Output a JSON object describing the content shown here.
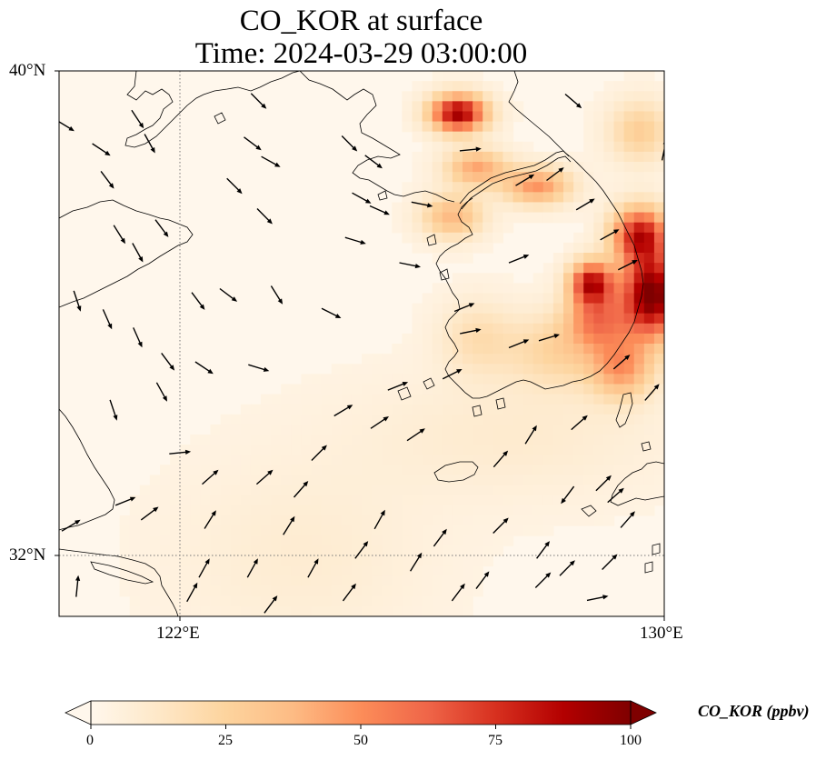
{
  "title_line1": "CO_KOR at surface",
  "title_line2": "Time: 2024-03-29 03:00:00",
  "lat_ticks": [
    "40°N",
    "32°N"
  ],
  "lon_ticks": [
    "122°E",
    "130°E"
  ],
  "colorbar": {
    "label": "CO_KOR (ppbv)",
    "ticks": [
      "0",
      "25",
      "50",
      "75",
      "100"
    ],
    "colormap": [
      "#fff7ec",
      "#fee8c8",
      "#fdd49e",
      "#fdbb84",
      "#fc8d59",
      "#ef6548",
      "#d7301f",
      "#b30000",
      "#7f0000"
    ],
    "extend": "both"
  },
  "map_extent": {
    "lon": [
      120,
      130
    ],
    "lat": [
      31,
      40
    ]
  },
  "gridlines": {
    "lon": [
      122
    ],
    "lat": [
      32
    ],
    "style": "dotted"
  },
  "chart_data": {
    "type": "heatmap",
    "variable": "CO_KOR",
    "units": "ppbv",
    "vmin": 0,
    "vmax": 100,
    "background_value": 3,
    "plumes": [
      {
        "lon": 126.6,
        "lat": 39.3,
        "rlon": 0.45,
        "rlat": 0.3,
        "value": 90
      },
      {
        "lon": 127.9,
        "lat": 38.1,
        "rlon": 0.55,
        "rlat": 0.3,
        "value": 45
      },
      {
        "lon": 126.9,
        "lat": 38.4,
        "rlon": 0.5,
        "rlat": 0.3,
        "value": 40
      },
      {
        "lon": 126.5,
        "lat": 37.6,
        "rlon": 0.5,
        "rlat": 0.35,
        "value": 35
      },
      {
        "lon": 128.8,
        "lat": 36.5,
        "rlon": 0.35,
        "rlat": 0.35,
        "value": 80
      },
      {
        "lon": 129.8,
        "lat": 36.3,
        "rlon": 0.5,
        "rlat": 0.7,
        "value": 100
      },
      {
        "lon": 129.6,
        "lat": 37.3,
        "rlon": 0.45,
        "rlat": 0.45,
        "value": 75
      },
      {
        "lon": 128.9,
        "lat": 35.9,
        "rlon": 0.5,
        "rlat": 0.45,
        "value": 45
      },
      {
        "lon": 128.3,
        "lat": 35.4,
        "rlon": 0.9,
        "rlat": 0.6,
        "value": 22
      },
      {
        "lon": 129.3,
        "lat": 35.1,
        "rlon": 0.5,
        "rlat": 0.5,
        "value": 40
      },
      {
        "lon": 126.9,
        "lat": 35.6,
        "rlon": 0.6,
        "rlat": 0.6,
        "value": 15
      },
      {
        "lon": 129.6,
        "lat": 39.0,
        "rlon": 0.5,
        "rlat": 0.5,
        "value": 25
      },
      {
        "lon": 127.5,
        "lat": 34.0,
        "rlon": 2.5,
        "rlat": 1.0,
        "value": 7
      },
      {
        "lon": 124.0,
        "lat": 32.0,
        "rlon": 2.0,
        "rlat": 1.5,
        "value": 6
      }
    ],
    "wind_arrows": [
      {
        "lon": 120.1,
        "lat": 39.1,
        "u": 1.0,
        "v": -0.6
      },
      {
        "lon": 120.7,
        "lat": 38.7,
        "u": 0.9,
        "v": -0.6
      },
      {
        "lon": 121.3,
        "lat": 39.2,
        "u": 0.6,
        "v": -0.9
      },
      {
        "lon": 121.5,
        "lat": 38.8,
        "u": 0.5,
        "v": -0.9
      },
      {
        "lon": 120.8,
        "lat": 38.2,
        "u": 0.6,
        "v": -0.8
      },
      {
        "lon": 121.7,
        "lat": 37.4,
        "u": 0.6,
        "v": -0.8
      },
      {
        "lon": 121.0,
        "lat": 37.3,
        "u": 0.5,
        "v": -0.8
      },
      {
        "lon": 121.3,
        "lat": 37.0,
        "u": 0.5,
        "v": -0.9
      },
      {
        "lon": 123.3,
        "lat": 39.5,
        "u": 0.7,
        "v": -0.7
      },
      {
        "lon": 123.2,
        "lat": 38.8,
        "u": 0.8,
        "v": -0.6
      },
      {
        "lon": 123.5,
        "lat": 38.5,
        "u": 0.9,
        "v": -0.5
      },
      {
        "lon": 122.9,
        "lat": 38.1,
        "u": 0.7,
        "v": -0.7
      },
      {
        "lon": 123.4,
        "lat": 37.6,
        "u": 0.7,
        "v": -0.7
      },
      {
        "lon": 124.8,
        "lat": 38.8,
        "u": 0.8,
        "v": -0.8
      },
      {
        "lon": 125.2,
        "lat": 38.5,
        "u": 0.8,
        "v": -0.6
      },
      {
        "lon": 125.0,
        "lat": 37.9,
        "u": 0.9,
        "v": -0.5
      },
      {
        "lon": 125.3,
        "lat": 37.7,
        "u": 0.9,
        "v": -0.4
      },
      {
        "lon": 126.0,
        "lat": 37.8,
        "u": 1.0,
        "v": -0.2
      },
      {
        "lon": 124.9,
        "lat": 37.2,
        "u": 1.0,
        "v": -0.3
      },
      {
        "lon": 125.8,
        "lat": 36.8,
        "u": 1.0,
        "v": -0.2
      },
      {
        "lon": 126.8,
        "lat": 38.7,
        "u": 1.0,
        "v": 0.1
      },
      {
        "lon": 127.7,
        "lat": 38.2,
        "u": 1.0,
        "v": 0.6
      },
      {
        "lon": 128.2,
        "lat": 38.3,
        "u": 0.8,
        "v": 0.6
      },
      {
        "lon": 128.7,
        "lat": 37.8,
        "u": 1.0,
        "v": 0.6
      },
      {
        "lon": 129.1,
        "lat": 37.3,
        "u": 0.9,
        "v": 0.5
      },
      {
        "lon": 127.6,
        "lat": 36.9,
        "u": 1.0,
        "v": 0.4
      },
      {
        "lon": 129.4,
        "lat": 36.8,
        "u": 1.0,
        "v": 0.5
      },
      {
        "lon": 126.7,
        "lat": 36.1,
        "u": 1.0,
        "v": 0.4
      },
      {
        "lon": 126.8,
        "lat": 35.7,
        "u": 1.0,
        "v": 0.2
      },
      {
        "lon": 127.6,
        "lat": 35.5,
        "u": 1.0,
        "v": 0.4
      },
      {
        "lon": 128.1,
        "lat": 35.6,
        "u": 1.0,
        "v": 0.3
      },
      {
        "lon": 129.3,
        "lat": 35.2,
        "u": 0.8,
        "v": 0.7
      },
      {
        "lon": 129.8,
        "lat": 34.7,
        "u": 0.7,
        "v": 0.8
      },
      {
        "lon": 126.5,
        "lat": 35.0,
        "u": 1.0,
        "v": 0.5
      },
      {
        "lon": 125.6,
        "lat": 34.8,
        "u": 1.0,
        "v": 0.4
      },
      {
        "lon": 124.7,
        "lat": 34.4,
        "u": 1.0,
        "v": 0.6
      },
      {
        "lon": 125.3,
        "lat": 34.2,
        "u": 0.9,
        "v": 0.6
      },
      {
        "lon": 124.3,
        "lat": 33.7,
        "u": 0.8,
        "v": 0.8
      },
      {
        "lon": 125.9,
        "lat": 34.0,
        "u": 0.9,
        "v": 0.6
      },
      {
        "lon": 127.3,
        "lat": 33.6,
        "u": 0.7,
        "v": 0.8
      },
      {
        "lon": 128.6,
        "lat": 34.2,
        "u": 0.8,
        "v": 0.7
      },
      {
        "lon": 127.8,
        "lat": 34.0,
        "u": 0.5,
        "v": 0.8
      },
      {
        "lon": 120.3,
        "lat": 36.2,
        "u": 0.3,
        "v": -0.9
      },
      {
        "lon": 120.8,
        "lat": 35.9,
        "u": 0.4,
        "v": -0.9
      },
      {
        "lon": 122.3,
        "lat": 36.2,
        "u": 0.6,
        "v": -0.8
      },
      {
        "lon": 122.8,
        "lat": 36.3,
        "u": 0.8,
        "v": -0.6
      },
      {
        "lon": 123.6,
        "lat": 36.3,
        "u": 0.5,
        "v": -0.8
      },
      {
        "lon": 124.5,
        "lat": 36.0,
        "u": 1.0,
        "v": -0.5
      },
      {
        "lon": 121.3,
        "lat": 35.6,
        "u": 0.4,
        "v": -0.9
      },
      {
        "lon": 121.8,
        "lat": 35.2,
        "u": 0.6,
        "v": -0.8
      },
      {
        "lon": 122.4,
        "lat": 35.1,
        "u": 0.9,
        "v": -0.6
      },
      {
        "lon": 123.3,
        "lat": 35.1,
        "u": 1.0,
        "v": -0.3
      },
      {
        "lon": 121.7,
        "lat": 34.7,
        "u": 0.5,
        "v": -0.9
      },
      {
        "lon": 120.9,
        "lat": 34.4,
        "u": 0.3,
        "v": -0.9
      },
      {
        "lon": 122.0,
        "lat": 33.7,
        "u": 1.0,
        "v": 0.1
      },
      {
        "lon": 122.5,
        "lat": 33.3,
        "u": 0.8,
        "v": 0.7
      },
      {
        "lon": 123.4,
        "lat": 33.3,
        "u": 0.8,
        "v": 0.7
      },
      {
        "lon": 124.0,
        "lat": 33.1,
        "u": 0.7,
        "v": 0.8
      },
      {
        "lon": 121.1,
        "lat": 32.9,
        "u": 1.0,
        "v": 0.4
      },
      {
        "lon": 121.5,
        "lat": 32.7,
        "u": 0.8,
        "v": 0.6
      },
      {
        "lon": 120.2,
        "lat": 32.5,
        "u": 1.0,
        "v": 0.6
      },
      {
        "lon": 122.5,
        "lat": 32.6,
        "u": 0.5,
        "v": 0.8
      },
      {
        "lon": 123.8,
        "lat": 32.5,
        "u": 0.5,
        "v": 0.8
      },
      {
        "lon": 122.4,
        "lat": 31.8,
        "u": 0.5,
        "v": 0.9
      },
      {
        "lon": 123.2,
        "lat": 31.8,
        "u": 0.5,
        "v": 0.9
      },
      {
        "lon": 124.2,
        "lat": 31.8,
        "u": 0.5,
        "v": 0.9
      },
      {
        "lon": 125.0,
        "lat": 32.1,
        "u": 0.6,
        "v": 0.8
      },
      {
        "lon": 125.9,
        "lat": 31.9,
        "u": 0.5,
        "v": 0.8
      },
      {
        "lon": 126.3,
        "lat": 32.3,
        "u": 0.6,
        "v": 0.8
      },
      {
        "lon": 125.3,
        "lat": 32.6,
        "u": 0.5,
        "v": 0.9
      },
      {
        "lon": 127.3,
        "lat": 32.5,
        "u": 0.7,
        "v": 0.7
      },
      {
        "lon": 128.0,
        "lat": 32.1,
        "u": 0.6,
        "v": 0.8
      },
      {
        "lon": 128.4,
        "lat": 31.8,
        "u": 0.7,
        "v": 0.7
      },
      {
        "lon": 128.0,
        "lat": 31.6,
        "u": 0.7,
        "v": 0.7
      },
      {
        "lon": 129.1,
        "lat": 31.9,
        "u": 0.7,
        "v": 0.7
      },
      {
        "lon": 129.4,
        "lat": 32.6,
        "u": 0.7,
        "v": 0.8
      },
      {
        "lon": 129.2,
        "lat": 33.0,
        "u": 0.8,
        "v": 0.7
      },
      {
        "lon": 127.0,
        "lat": 31.6,
        "u": 0.6,
        "v": 0.8
      },
      {
        "lon": 122.2,
        "lat": 31.4,
        "u": 0.5,
        "v": 0.9
      },
      {
        "lon": 123.5,
        "lat": 31.2,
        "u": 0.6,
        "v": 0.8
      },
      {
        "lon": 124.8,
        "lat": 31.4,
        "u": 0.6,
        "v": 0.8
      },
      {
        "lon": 126.6,
        "lat": 31.4,
        "u": 0.6,
        "v": 0.8
      },
      {
        "lon": 128.9,
        "lat": 31.3,
        "u": 1.0,
        "v": 0.2
      },
      {
        "lon": 120.3,
        "lat": 31.5,
        "u": 0.1,
        "v": 1.0
      },
      {
        "lon": 128.4,
        "lat": 33.0,
        "u": -0.6,
        "v": -0.8
      },
      {
        "lon": 129.0,
        "lat": 33.2,
        "u": 0.7,
        "v": 0.7
      },
      {
        "lon": 130.0,
        "lat": 38.7,
        "u": 0.2,
        "v": 1.0
      },
      {
        "lon": 128.5,
        "lat": 39.5,
        "u": 0.7,
        "v": -0.6
      }
    ]
  }
}
